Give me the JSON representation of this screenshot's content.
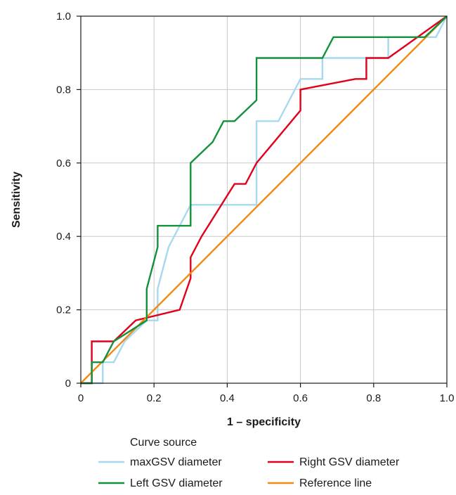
{
  "chart_data": {
    "type": "line",
    "title": "",
    "xlabel": "1 – specificity",
    "ylabel": "Sensitivity",
    "xlim": [
      0,
      1
    ],
    "ylim": [
      0,
      1
    ],
    "grid": true,
    "x_ticks": [
      "0",
      "0.2",
      "0.4",
      "0.6",
      "0.8",
      "1.0"
    ],
    "y_ticks": [
      "0",
      "0.2",
      "0.4",
      "0.6",
      "0.8",
      "1.0"
    ],
    "legend": {
      "title": "Curve source",
      "placement": "bottom"
    },
    "series": [
      {
        "name": "maxGSV diameter",
        "color": "#a6d8f0",
        "x": [
          0,
          0.06,
          0.06,
          0.09,
          0.12,
          0.18,
          0.21,
          0.21,
          0.24,
          0.3,
          0.48,
          0.48,
          0.54,
          0.6,
          0.66,
          0.66,
          0.84,
          0.84,
          0.97,
          1.0
        ],
        "y": [
          0,
          0,
          0.057,
          0.057,
          0.114,
          0.171,
          0.171,
          0.257,
          0.371,
          0.486,
          0.486,
          0.714,
          0.714,
          0.829,
          0.829,
          0.886,
          0.886,
          0.943,
          0.943,
          1.0
        ]
      },
      {
        "name": "Right GSV diameter",
        "color": "#e2001a",
        "x": [
          0,
          0.03,
          0.03,
          0.09,
          0.15,
          0.27,
          0.3,
          0.3,
          0.33,
          0.42,
          0.45,
          0.48,
          0.6,
          0.6,
          0.75,
          0.78,
          0.78,
          0.84,
          1.0
        ],
        "y": [
          0,
          0,
          0.114,
          0.114,
          0.171,
          0.2,
          0.286,
          0.343,
          0.4,
          0.543,
          0.543,
          0.6,
          0.743,
          0.8,
          0.829,
          0.829,
          0.886,
          0.886,
          1.0
        ]
      },
      {
        "name": "Left GSV diameter",
        "color": "#13913b",
        "x": [
          0,
          0.03,
          0.03,
          0.06,
          0.09,
          0.18,
          0.18,
          0.21,
          0.21,
          0.3,
          0.3,
          0.36,
          0.39,
          0.42,
          0.48,
          0.48,
          0.66,
          0.69,
          0.94,
          1.0
        ],
        "y": [
          0,
          0,
          0.057,
          0.057,
          0.114,
          0.171,
          0.257,
          0.371,
          0.429,
          0.429,
          0.6,
          0.657,
          0.714,
          0.714,
          0.771,
          0.886,
          0.886,
          0.943,
          0.943,
          1.0
        ]
      },
      {
        "name": "Reference line",
        "color": "#ef8a12",
        "x": [
          0,
          1
        ],
        "y": [
          0,
          1
        ]
      }
    ]
  }
}
